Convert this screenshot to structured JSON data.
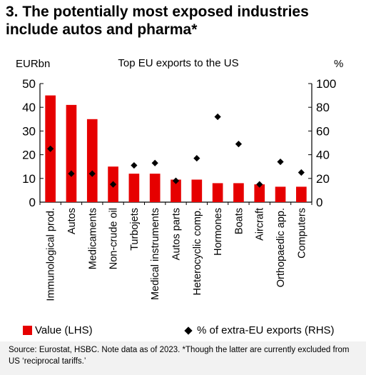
{
  "title": "3. The potentially most exposed industries include autos and pharma*",
  "chart_data": {
    "type": "bar",
    "title": "Top EU exports to the US",
    "ylabel_left": "EURbn",
    "ylabel_right": "%",
    "ylim_left": [
      0,
      50
    ],
    "ylim_right": [
      0,
      100
    ],
    "yticks_left": [
      "0",
      "10",
      "20",
      "30",
      "40",
      "50"
    ],
    "yticks_right": [
      "0",
      "20",
      "40",
      "60",
      "80",
      "100"
    ],
    "categories": [
      "Immunological prod.",
      "Autos",
      "Medicaments",
      "Non-crude oil",
      "Turbojets",
      "Medical instruments",
      "Autos parts",
      "Heterocyclic comp.",
      "Hormones",
      "Boats",
      "Aircraft",
      "Orthopaedic app.",
      "Computers"
    ],
    "series": [
      {
        "name": "Value (LHS)",
        "axis": "left",
        "kind": "bar",
        "color": "#e60000",
        "values": [
          45,
          41,
          35,
          15,
          12,
          12,
          9.5,
          9.5,
          8,
          8,
          7.5,
          6.5,
          6.5
        ]
      },
      {
        "name": "% of extra-EU exports (RHS)",
        "axis": "right",
        "kind": "scatter",
        "color": "#000000",
        "values": [
          45,
          24,
          24,
          15,
          31,
          33,
          18,
          37,
          72,
          49,
          15,
          34,
          25
        ]
      }
    ],
    "grid": false,
    "legend": "bottom"
  },
  "source": "Source: Eurostat, HSBC. Note data as of 2023. *Though the latter are currently excluded from US ‘reciprocal tariffs.’"
}
